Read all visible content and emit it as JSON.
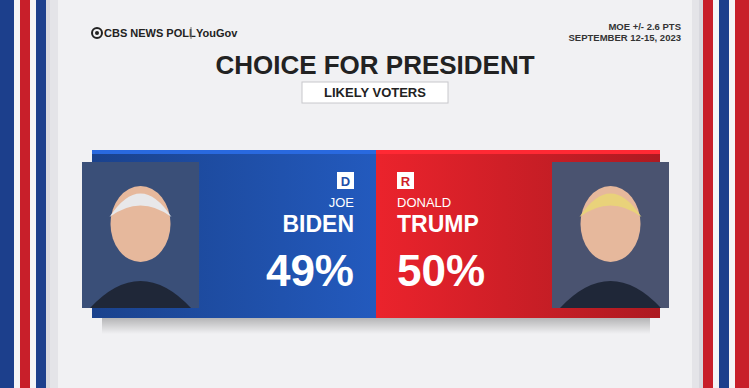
{
  "chart_data": {
    "type": "bar",
    "title": "CHOICE FOR PRESIDENT",
    "subtitle": "LIKELY VOTERS",
    "source": "CBS NEWS POLL",
    "source_partner": "YouGov",
    "annotations": [
      "MOE +/- 2.6 PTS",
      "SEPTEMBER 12-15, 2023"
    ],
    "categories": [
      "BIDEN",
      "TRUMP"
    ],
    "first_names": [
      "JOE",
      "DONALD"
    ],
    "parties": [
      "D",
      "R"
    ],
    "values": [
      49,
      50
    ],
    "value_labels": [
      "49%",
      "50%"
    ],
    "data_labels": true,
    "tick_labels": false,
    "colors": [
      "#1f4fa8",
      "#cf1f27"
    ]
  }
}
